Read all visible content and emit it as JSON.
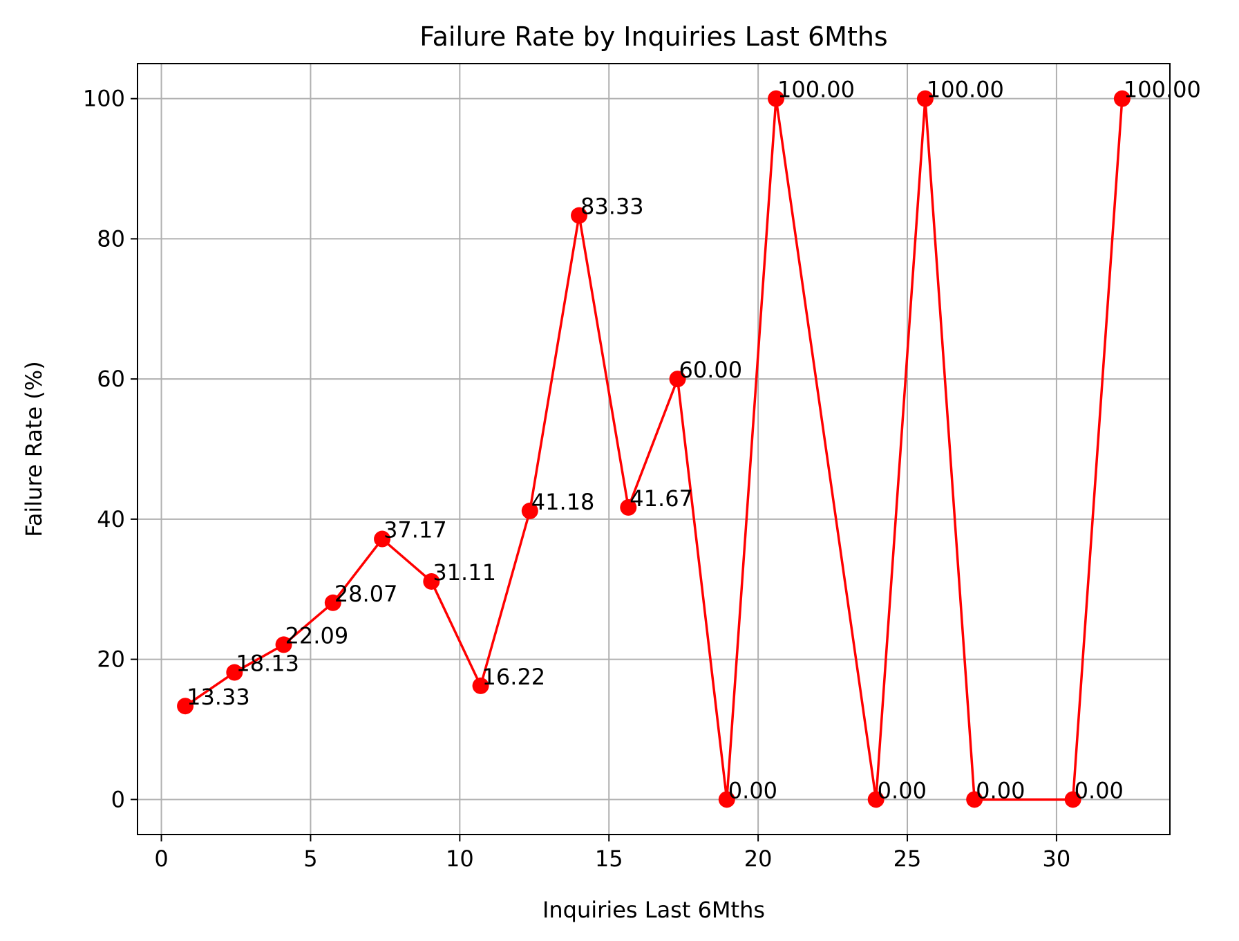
{
  "chart_data": {
    "type": "line",
    "title": "Failure Rate by Inquiries Last 6Mths",
    "xlabel": "Inquiries Last 6Mths",
    "ylabel": "Failure Rate (%)",
    "xlim": [
      -0.8,
      33.8
    ],
    "ylim": [
      -5,
      105
    ],
    "xticks": [
      0,
      5,
      10,
      15,
      20,
      25,
      30
    ],
    "yticks": [
      0,
      20,
      40,
      60,
      80,
      100
    ],
    "grid": true,
    "color": "#ff0000",
    "series": [
      {
        "x": [
          0.8,
          2.45,
          4.1,
          5.75,
          7.4,
          9.05,
          10.7,
          12.35,
          14.0,
          15.65,
          17.3,
          18.95,
          20.6,
          23.95,
          25.6,
          27.25,
          30.55,
          32.2
        ],
        "y": [
          13.33,
          18.13,
          22.09,
          28.07,
          37.17,
          31.11,
          16.22,
          41.18,
          83.33,
          41.67,
          60.0,
          0.0,
          100.0,
          0.0,
          100.0,
          0.0,
          0.0,
          100.0
        ],
        "labels": [
          "13.33",
          "18.13",
          "22.09",
          "28.07",
          "37.17",
          "31.11",
          "16.22",
          "41.18",
          "83.33",
          "41.67",
          "60.00",
          "0.00",
          "100.00",
          "0.00",
          "100.00",
          "0.00",
          "0.00",
          "100.00"
        ]
      }
    ]
  }
}
